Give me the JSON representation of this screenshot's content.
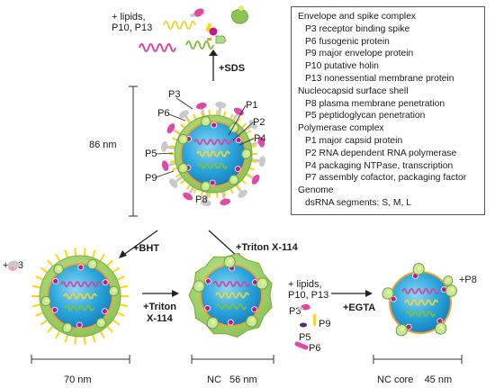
{
  "colors": {
    "envelope_green": "#8dc552",
    "core_blue": "#2aa6dc",
    "shell_orange": "#f0a030",
    "spike_pink": "#e04aa5",
    "p6_grey": "#c9c9c9",
    "p9_yellow": "#ffd60a",
    "p1_magenta": "#c2188f",
    "rna_pink": "#d6449e",
    "rna_yellow": "#e8d63a",
    "rna_green": "#7fbf3a"
  },
  "labels": {
    "top_products": "+ lipids,\nP10, P13",
    "sds": "+SDS",
    "bht": "+BHT",
    "triton_diag": "+Triton X-114",
    "triton_mid_1": "+Triton",
    "triton_mid_2": "X-114",
    "egta": "+EGTA",
    "p3_release": "+ P3",
    "p8_release": "+P8",
    "nc_products": "+ lipids,\nP10, P13",
    "size_86": "86 nm",
    "size_70": "70 nm",
    "size_56": "NC   56 nm",
    "size_45": "NC core    45 nm"
  },
  "virion_labels": {
    "p3": "P3",
    "p6": "P6",
    "p1": "P1",
    "p2": "P2",
    "p4": "P4",
    "p5": "P5",
    "p9": "P9",
    "p8": "P8"
  },
  "released_labels": {
    "p3": "P3",
    "p9": "P9",
    "p5": "P5",
    "p6": "P6"
  },
  "legend": [
    {
      "text": "Envelope and spike complex",
      "sub": false
    },
    {
      "text": "P3 receptor binding spike",
      "sub": true
    },
    {
      "text": "P6 fusogenic protein",
      "sub": true
    },
    {
      "text": "P9 major envelope protein",
      "sub": true
    },
    {
      "text": "P10 putative holin",
      "sub": true
    },
    {
      "text": "P13 nonessential membrane protein",
      "sub": true
    },
    {
      "text": "Nucleocapsid surface shell",
      "sub": false
    },
    {
      "text": "P8 plasma membrane penetration",
      "sub": true
    },
    {
      "text": "P5 peptidoglycan penetration",
      "sub": true
    },
    {
      "text": "Polymerase complex",
      "sub": false
    },
    {
      "text": "P1 major capsid protein",
      "sub": true
    },
    {
      "text": "P2 RNA dependent RNA polymerase",
      "sub": true
    },
    {
      "text": "P4 packaging NTPase, transcription",
      "sub": true
    },
    {
      "text": "P7 assembly cofactor, packaging factor",
      "sub": true
    },
    {
      "text": "Genome",
      "sub": false
    },
    {
      "text": "dsRNA segments: S, M, L",
      "sub": true
    }
  ]
}
